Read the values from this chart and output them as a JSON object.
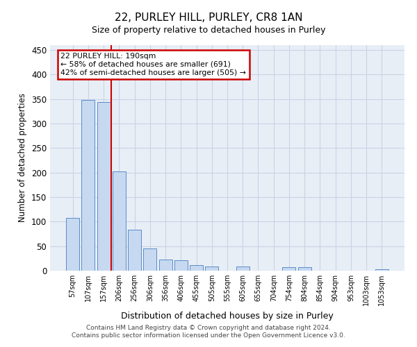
{
  "title": "22, PURLEY HILL, PURLEY, CR8 1AN",
  "subtitle": "Size of property relative to detached houses in Purley",
  "xlabel": "Distribution of detached houses by size in Purley",
  "ylabel": "Number of detached properties",
  "categories": [
    "57sqm",
    "107sqm",
    "157sqm",
    "206sqm",
    "256sqm",
    "306sqm",
    "356sqm",
    "406sqm",
    "455sqm",
    "505sqm",
    "555sqm",
    "605sqm",
    "655sqm",
    "704sqm",
    "754sqm",
    "804sqm",
    "854sqm",
    "904sqm",
    "953sqm",
    "1003sqm",
    "1053sqm"
  ],
  "values": [
    108,
    348,
    344,
    203,
    84,
    46,
    23,
    21,
    11,
    8,
    0,
    8,
    0,
    0,
    7,
    7,
    0,
    0,
    0,
    0,
    3
  ],
  "bar_color": "#c6d9f0",
  "bar_edge_color": "#5b8cc8",
  "grid_color": "#c8d4e4",
  "bg_color": "#e8eef6",
  "property_line_x": 2.5,
  "annotation_line1": "22 PURLEY HILL: 190sqm",
  "annotation_line2": "← 58% of detached houses are smaller (691)",
  "annotation_line3": "42% of semi-detached houses are larger (505) →",
  "annotation_box_color": "#cc0000",
  "ylim": [
    0,
    460
  ],
  "yticks": [
    0,
    50,
    100,
    150,
    200,
    250,
    300,
    350,
    400,
    450
  ],
  "footnote1": "Contains HM Land Registry data © Crown copyright and database right 2024.",
  "footnote2": "Contains public sector information licensed under the Open Government Licence v3.0."
}
